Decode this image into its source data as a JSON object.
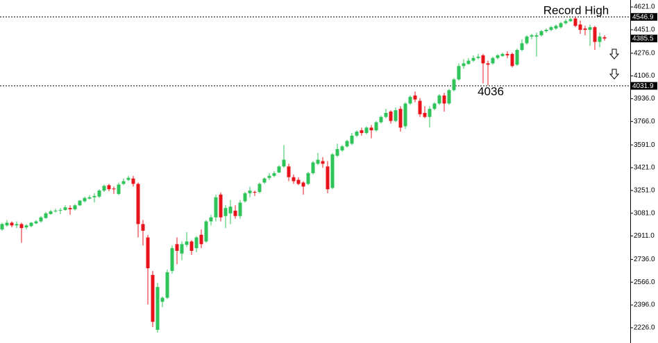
{
  "chart_data": {
    "type": "candlestick",
    "annotations": [
      "Record High",
      "4036"
    ],
    "up_color": "#2fc45a",
    "down_color": "#e8141c",
    "ylim": [
      2174,
      4673
    ],
    "yticks": [
      {
        "value": 4621,
        "label": "4621.0"
      },
      {
        "value": 4451,
        "label": "4451.0"
      },
      {
        "value": 4276,
        "label": "4276.0"
      },
      {
        "value": 4106,
        "label": "4106.0"
      },
      {
        "value": 3936,
        "label": "3936.0"
      },
      {
        "value": 3766,
        "label": "3766.0"
      },
      {
        "value": 3591,
        "label": "3591.0"
      },
      {
        "value": 3421,
        "label": "3421.0"
      },
      {
        "value": 3251,
        "label": "3251.0"
      },
      {
        "value": 3081,
        "label": "3081.0"
      },
      {
        "value": 2911,
        "label": "2911.0"
      },
      {
        "value": 2736,
        "label": "2736.0"
      },
      {
        "value": 2566,
        "label": "2566.0"
      },
      {
        "value": 2396,
        "label": "2396.0"
      },
      {
        "value": 2226,
        "label": "2226.0"
      }
    ],
    "levels": [
      {
        "value": 4546.9,
        "label": "4546.9"
      },
      {
        "value": 4031.9,
        "label": "4031.9"
      }
    ],
    "last_price": {
      "value": 4385.5,
      "label": "4385.5"
    },
    "open": [
      2960,
      2990,
      3010,
      2990,
      3000,
      2975,
      2985,
      3005,
      3020,
      3045,
      3075,
      3095,
      3100,
      3105,
      3120,
      3110,
      3140,
      3170,
      3190,
      3200,
      3205,
      3250,
      3290,
      3265,
      3225,
      3300,
      3330,
      3340,
      3300,
      3000,
      2900,
      2620,
      2210,
      2420,
      2450,
      2650,
      2850,
      2780,
      2845,
      2870,
      2820,
      2920,
      2870,
      3020,
      3050,
      3220,
      3060,
      3080,
      3100,
      3060,
      3170,
      3230,
      3240,
      3240,
      3310,
      3345,
      3360,
      3385,
      3430,
      3430,
      3350,
      3330,
      3310,
      3300,
      3380,
      3450,
      3470,
      3430,
      3270,
      3510,
      3550,
      3580,
      3600,
      3660,
      3700,
      3680,
      3720,
      3700,
      3760,
      3800,
      3840,
      3770,
      3860,
      3730,
      3900,
      3960,
      3920,
      3830,
      3800,
      3860,
      3900,
      3960,
      3900,
      4000,
      4080,
      4180,
      4195,
      4220,
      4240,
      4260,
      4200,
      4200,
      4240,
      4255,
      4270,
      4270,
      4190,
      4300,
      4350,
      4400,
      4400,
      4410,
      4440,
      4450,
      4460,
      4470,
      4500,
      4515,
      4535,
      4490,
      4460,
      4450,
      4470,
      4360,
      4395
    ],
    "high": [
      3010,
      3030,
      3020,
      3020,
      3010,
      3000,
      3015,
      3030,
      3060,
      3090,
      3105,
      3115,
      3120,
      3140,
      3140,
      3150,
      3180,
      3205,
      3215,
      3230,
      3260,
      3295,
      3300,
      3280,
      3310,
      3340,
      3360,
      3360,
      3310,
      3030,
      2920,
      2650,
      2560,
      2460,
      2660,
      2840,
      2900,
      2870,
      2940,
      2880,
      2910,
      2960,
      3030,
      3070,
      3220,
      3235,
      3140,
      3180,
      3140,
      3180,
      3240,
      3280,
      3250,
      3310,
      3350,
      3380,
      3395,
      3440,
      3590,
      3450,
      3370,
      3350,
      3320,
      3390,
      3470,
      3530,
      3500,
      3470,
      3530,
      3600,
      3590,
      3630,
      3680,
      3700,
      3720,
      3730,
      3740,
      3770,
      3810,
      3860,
      3850,
      3870,
      3880,
      3910,
      3960,
      3990,
      3940,
      3880,
      3880,
      3910,
      3970,
      3980,
      4010,
      4090,
      4200,
      4230,
      4240,
      4260,
      4270,
      4270,
      4220,
      4250,
      4270,
      4280,
      4290,
      4280,
      4310,
      4380,
      4410,
      4420,
      4430,
      4450,
      4460,
      4480,
      4490,
      4510,
      4530,
      4540,
      4546.9,
      4520,
      4480,
      4490,
      4480,
      4430,
      4410
    ],
    "low": [
      2950,
      2980,
      2975,
      2970,
      2860,
      2960,
      2975,
      3000,
      3010,
      3040,
      3070,
      3085,
      3075,
      3100,
      3070,
      3100,
      3135,
      3160,
      3185,
      3160,
      3195,
      3240,
      3245,
      3225,
      3215,
      3290,
      3320,
      3280,
      2900,
      2840,
      2400,
      2230,
      2190,
      2380,
      2440,
      2630,
      2700,
      2730,
      2830,
      2770,
      2790,
      2820,
      2860,
      2990,
      3020,
      3020,
      2970,
      3000,
      3040,
      3040,
      3160,
      3200,
      3210,
      3230,
      3300,
      3330,
      3350,
      3380,
      3420,
      3320,
      3300,
      3290,
      3220,
      3290,
      3370,
      3440,
      3420,
      3230,
      3260,
      3500,
      3540,
      3570,
      3590,
      3650,
      3660,
      3670,
      3640,
      3690,
      3750,
      3790,
      3750,
      3760,
      3690,
      3710,
      3890,
      3910,
      3800,
      3790,
      3720,
      3850,
      3890,
      3840,
      3890,
      3990,
      4070,
      4160,
      4190,
      4210,
      4230,
      4050,
      4036,
      4190,
      4230,
      4250,
      4240,
      4170,
      4180,
      4290,
      4340,
      4380,
      4250,
      4400,
      4430,
      4440,
      4450,
      4460,
      4490,
      4510,
      4470,
      4420,
      4410,
      4330,
      4300,
      4320,
      4370
    ],
    "close": [
      3000,
      3010,
      2990,
      3000,
      2970,
      2990,
      3010,
      3020,
      3050,
      3080,
      3095,
      3100,
      3105,
      3125,
      3110,
      3140,
      3175,
      3195,
      3200,
      3210,
      3250,
      3285,
      3260,
      3260,
      3295,
      3320,
      3345,
      3300,
      3000,
      2950,
      2670,
      2270,
      2530,
      2450,
      2640,
      2820,
      2800,
      2850,
      2870,
      2800,
      2900,
      2850,
      3020,
      3050,
      3200,
      3050,
      3120,
      3130,
      3060,
      3160,
      3230,
      3250,
      3235,
      3300,
      3340,
      3360,
      3380,
      3430,
      3480,
      3350,
      3320,
      3300,
      3280,
      3380,
      3460,
      3480,
      3450,
      3260,
      3520,
      3560,
      3580,
      3620,
      3660,
      3690,
      3680,
      3720,
      3700,
      3760,
      3800,
      3830,
      3770,
      3850,
      3720,
      3900,
      3950,
      3930,
      3820,
      3800,
      3860,
      3900,
      3960,
      3900,
      4000,
      4080,
      4180,
      4200,
      4220,
      4240,
      4250,
      4200,
      4190,
      4240,
      4260,
      4270,
      4260,
      4180,
      4300,
      4350,
      4400,
      4410,
      4410,
      4440,
      4450,
      4470,
      4480,
      4500,
      4515,
      4530,
      4480,
      4450,
      4450,
      4470,
      4360,
      4400,
      4385.5
    ]
  }
}
